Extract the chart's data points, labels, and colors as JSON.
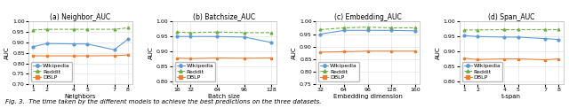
{
  "plots": [
    {
      "title": "(a) Neighbor_AUC",
      "xlabel": "Neighbors",
      "ylabel": "AUC",
      "xlim_values": [
        1,
        2,
        4,
        5,
        7,
        8
      ],
      "xtick_labels": [
        "1",
        "2",
        "4",
        "5",
        "7",
        "8"
      ],
      "ylim": [
        0.7,
        1.0
      ],
      "yticks": [
        0.7,
        0.75,
        0.8,
        0.85,
        0.9,
        0.95,
        1.0
      ],
      "lines": [
        {
          "label": "Wikipedia",
          "color": "#5b9bd5",
          "marker": "o",
          "values": [
            0.88,
            0.895,
            0.893,
            0.893,
            0.865,
            0.915
          ],
          "linestyle": "-"
        },
        {
          "label": "Reddit",
          "color": "#70ad47",
          "marker": "^",
          "values": [
            0.96,
            0.963,
            0.963,
            0.963,
            0.963,
            0.97
          ],
          "linestyle": "--"
        },
        {
          "label": "DBLP",
          "color": "#ed7d31",
          "marker": "s",
          "values": [
            0.836,
            0.836,
            0.836,
            0.836,
            0.837,
            0.84
          ],
          "linestyle": "-"
        }
      ]
    },
    {
      "title": "(b) Batchsize_AUC",
      "xlabel": "Batch size",
      "ylabel": "AUC",
      "xlim_values": [
        16,
        32,
        64,
        96,
        128
      ],
      "xtick_labels": [
        "16",
        "32",
        "64",
        "96",
        "128"
      ],
      "ylim": [
        0.79,
        1.0
      ],
      "yticks": [
        0.8,
        0.85,
        0.9,
        0.95,
        1.0
      ],
      "lines": [
        {
          "label": "Wikipedia",
          "color": "#5b9bd5",
          "marker": "o",
          "values": [
            0.95,
            0.95,
            0.95,
            0.948,
            0.93
          ],
          "linestyle": "-"
        },
        {
          "label": "Reddit",
          "color": "#70ad47",
          "marker": "^",
          "values": [
            0.965,
            0.963,
            0.965,
            0.963,
            0.963
          ],
          "linestyle": "--"
        },
        {
          "label": "DBLP",
          "color": "#ed7d31",
          "marker": "s",
          "values": [
            0.878,
            0.876,
            0.878,
            0.877,
            0.878
          ],
          "linestyle": "-"
        }
      ]
    },
    {
      "title": "(c) Embedding_AUC",
      "xlabel": "Embedding dimension",
      "ylabel": "AUC",
      "xlim_values": [
        32,
        64,
        96,
        128,
        160
      ],
      "xtick_labels": [
        "32",
        "64",
        "96",
        "128",
        "160"
      ],
      "ylim": [
        0.75,
        1.0
      ],
      "yticks": [
        0.75,
        0.8,
        0.85,
        0.9,
        0.95,
        1.0
      ],
      "lines": [
        {
          "label": "Wikipedia",
          "color": "#5b9bd5",
          "marker": "o",
          "values": [
            0.95,
            0.965,
            0.965,
            0.965,
            0.963
          ],
          "linestyle": "-"
        },
        {
          "label": "Reddit",
          "color": "#70ad47",
          "marker": "^",
          "values": [
            0.968,
            0.975,
            0.978,
            0.975,
            0.975
          ],
          "linestyle": "--"
        },
        {
          "label": "DBLP",
          "color": "#ed7d31",
          "marker": "s",
          "values": [
            0.878,
            0.88,
            0.882,
            0.882,
            0.882
          ],
          "linestyle": "-"
        }
      ]
    },
    {
      "title": "(d) Span_AUC",
      "xlabel": "t-span",
      "ylabel": "AUC",
      "xlim_values": [
        1,
        2,
        4,
        5,
        7,
        8
      ],
      "xtick_labels": [
        "1",
        "2",
        "4",
        "5",
        "7",
        "8"
      ],
      "ylim": [
        0.79,
        1.0
      ],
      "yticks": [
        0.8,
        0.85,
        0.9,
        0.95,
        1.0
      ],
      "lines": [
        {
          "label": "Wikipedia",
          "color": "#5b9bd5",
          "marker": "o",
          "values": [
            0.953,
            0.95,
            0.948,
            0.948,
            0.943,
            0.94
          ],
          "linestyle": "-"
        },
        {
          "label": "Reddit",
          "color": "#70ad47",
          "marker": "^",
          "values": [
            0.972,
            0.972,
            0.973,
            0.973,
            0.973,
            0.973
          ],
          "linestyle": "--"
        },
        {
          "label": "DBLP",
          "color": "#ed7d31",
          "marker": "s",
          "values": [
            0.877,
            0.873,
            0.875,
            0.875,
            0.872,
            0.875
          ],
          "linestyle": "-"
        }
      ]
    }
  ],
  "caption": "Fig. 3.  The time taken by the different models to achieve the best predictions on the three datasets.",
  "bg_color": "#ffffff",
  "grid_color": "#dddddd",
  "legend_fontsize": 4.5,
  "tick_fontsize": 4.5,
  "label_fontsize": 5.0,
  "title_fontsize": 5.5,
  "caption_fontsize": 5.0
}
